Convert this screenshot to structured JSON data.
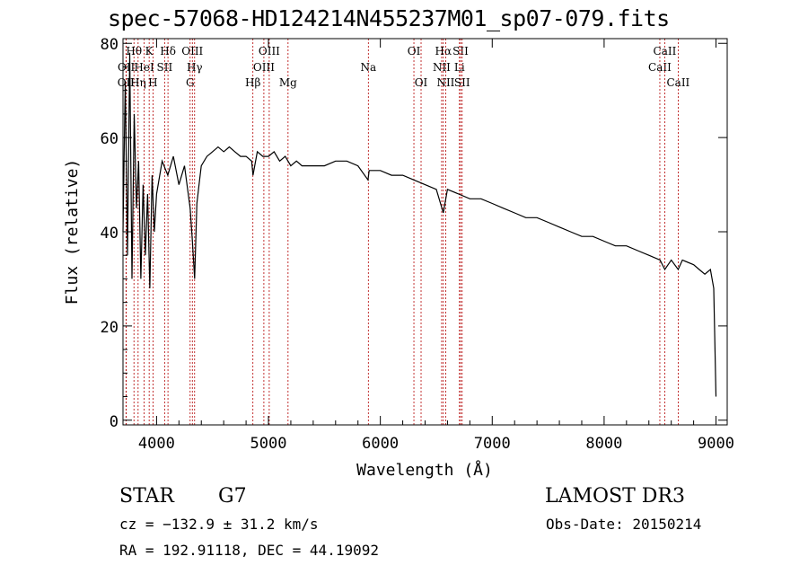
{
  "chart_data": {
    "type": "line",
    "title": "spec-57068-HD124214N455237M01_sp07-079.fits",
    "xlabel": "Wavelength (Å)",
    "ylabel": "Flux (relative)",
    "xlim": [
      3700,
      9100
    ],
    "ylim": [
      -1,
      81
    ],
    "xticks": [
      4000,
      5000,
      6000,
      7000,
      8000,
      9000
    ],
    "yticks": [
      0,
      20,
      40,
      60,
      80
    ],
    "series": [
      {
        "name": "spectrum",
        "x": [
          3700,
          3720,
          3740,
          3760,
          3780,
          3800,
          3820,
          3840,
          3860,
          3880,
          3900,
          3920,
          3940,
          3960,
          3980,
          4000,
          4050,
          4100,
          4150,
          4200,
          4250,
          4300,
          4320,
          4340,
          4360,
          4380,
          4400,
          4450,
          4500,
          4550,
          4600,
          4650,
          4700,
          4750,
          4800,
          4850,
          4862,
          4900,
          4950,
          5000,
          5050,
          5100,
          5150,
          5200,
          5250,
          5300,
          5400,
          5500,
          5600,
          5700,
          5800,
          5890,
          5900,
          6000,
          6100,
          6200,
          6300,
          6400,
          6500,
          6563,
          6600,
          6700,
          6800,
          6900,
          7000,
          7100,
          7200,
          7300,
          7400,
          7500,
          7600,
          7700,
          7800,
          7900,
          8000,
          8100,
          8200,
          8300,
          8400,
          8500,
          8542,
          8600,
          8662,
          8700,
          8800,
          8850,
          8900,
          8950,
          8980,
          9000
        ],
        "y": [
          40,
          72,
          35,
          78,
          30,
          65,
          45,
          55,
          30,
          50,
          35,
          48,
          28,
          52,
          40,
          48,
          55,
          52,
          56,
          50,
          54,
          45,
          38,
          30,
          46,
          50,
          54,
          56,
          57,
          58,
          57,
          58,
          57,
          56,
          56,
          55,
          52,
          57,
          56,
          56,
          57,
          55,
          56,
          54,
          55,
          54,
          54,
          54,
          55,
          55,
          54,
          51,
          53,
          53,
          52,
          52,
          51,
          50,
          49,
          44,
          49,
          48,
          47,
          47,
          46,
          45,
          44,
          43,
          43,
          42,
          41,
          40,
          39,
          39,
          38,
          37,
          37,
          36,
          35,
          34,
          32,
          34,
          32,
          34,
          33,
          32,
          31,
          32,
          28,
          5
        ]
      }
    ],
    "lines": [
      {
        "name": "OII",
        "wl": 3727,
        "row": 2
      },
      {
        "name": "OII",
        "wl": 3729,
        "row": 1
      },
      {
        "name": "Hθ",
        "wl": 3798,
        "row": 0
      },
      {
        "name": "Hη",
        "wl": 3835,
        "row": 2
      },
      {
        "name": "HeI",
        "wl": 3889,
        "row": 1
      },
      {
        "name": "K",
        "wl": 3934,
        "row": 0
      },
      {
        "name": "H",
        "wl": 3968,
        "row": 2
      },
      {
        "name": "SII",
        "wl": 4072,
        "row": 1
      },
      {
        "name": "Hδ",
        "wl": 4102,
        "row": 0
      },
      {
        "name": "G",
        "wl": 4300,
        "row": 2
      },
      {
        "name": "OIII",
        "wl": 4320,
        "row": 0
      },
      {
        "name": "Hγ",
        "wl": 4340,
        "row": 1
      },
      {
        "name": "Hβ",
        "wl": 4861,
        "row": 2
      },
      {
        "name": "OIII",
        "wl": 4959,
        "row": 1
      },
      {
        "name": "OIII",
        "wl": 5007,
        "row": 0
      },
      {
        "name": "Mg",
        "wl": 5175,
        "row": 2
      },
      {
        "name": "Na",
        "wl": 5893,
        "row": 1
      },
      {
        "name": "OI",
        "wl": 6300,
        "row": 0
      },
      {
        "name": "OI",
        "wl": 6364,
        "row": 2
      },
      {
        "name": "NII",
        "wl": 6548,
        "row": 1
      },
      {
        "name": "Hα",
        "wl": 6563,
        "row": 0
      },
      {
        "name": "NII",
        "wl": 6584,
        "row": 2
      },
      {
        "name": "Li",
        "wl": 6707,
        "row": 1
      },
      {
        "name": "SII",
        "wl": 6717,
        "row": 0
      },
      {
        "name": "SII",
        "wl": 6731,
        "row": 2
      },
      {
        "name": "CaII",
        "wl": 8498,
        "row": 1
      },
      {
        "name": "CaII",
        "wl": 8542,
        "row": 0
      },
      {
        "name": "CaII",
        "wl": 8662,
        "row": 2
      }
    ]
  },
  "info": {
    "class": "STAR",
    "subclass": "G7",
    "survey": "LAMOST DR3",
    "cz": "cz = −132.9 ± 31.2 km/s",
    "obs_date": "Obs-Date: 20150214",
    "coords": "RA = 192.91118, DEC =  44.19092"
  },
  "colors": {
    "line_marker": "#b30000",
    "spectrum": "#000000"
  }
}
